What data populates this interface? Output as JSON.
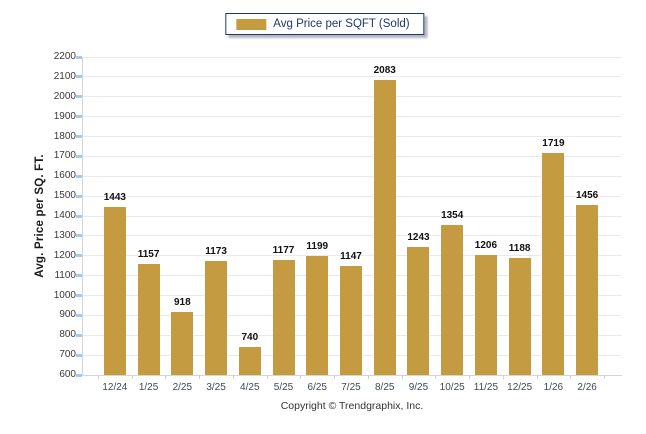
{
  "legend": {
    "label": "Avg Price per SQFT (Sold)"
  },
  "chart_data": {
    "type": "bar",
    "title": "",
    "categories": [
      "12/24",
      "1/25",
      "2/25",
      "3/25",
      "4/25",
      "5/25",
      "6/25",
      "7/25",
      "8/25",
      "9/25",
      "10/25",
      "11/25",
      "12/25",
      "1/26",
      "2/26"
    ],
    "series": [
      {
        "name": "Avg Price per SQFT (Sold)",
        "values": [
          1443,
          1157,
          918,
          1173,
          740,
          1177,
          1199,
          1147,
          2083,
          1243,
          1354,
          1206,
          1188,
          1719,
          1456
        ]
      }
    ],
    "xlabel": "",
    "ylabel": "Avg. Price per SQ. FT.",
    "ylim": [
      600,
      2200
    ],
    "ytick_step": 100,
    "grid": true,
    "legend_position": "top-center",
    "value_labels": true
  },
  "footer": {
    "copyright": "Copyright © Trendgraphix, Inc."
  },
  "colors": {
    "bar": "#C49B41",
    "legend_border": "#1B3A68",
    "legend_text": "#1F3864",
    "gridline": "#EAEAEA",
    "axis_line": "#D5D5D5",
    "y_tick_mark": "#A6C9F0",
    "x_tick_mark": "#C9CED6",
    "value_label": "#111111"
  }
}
